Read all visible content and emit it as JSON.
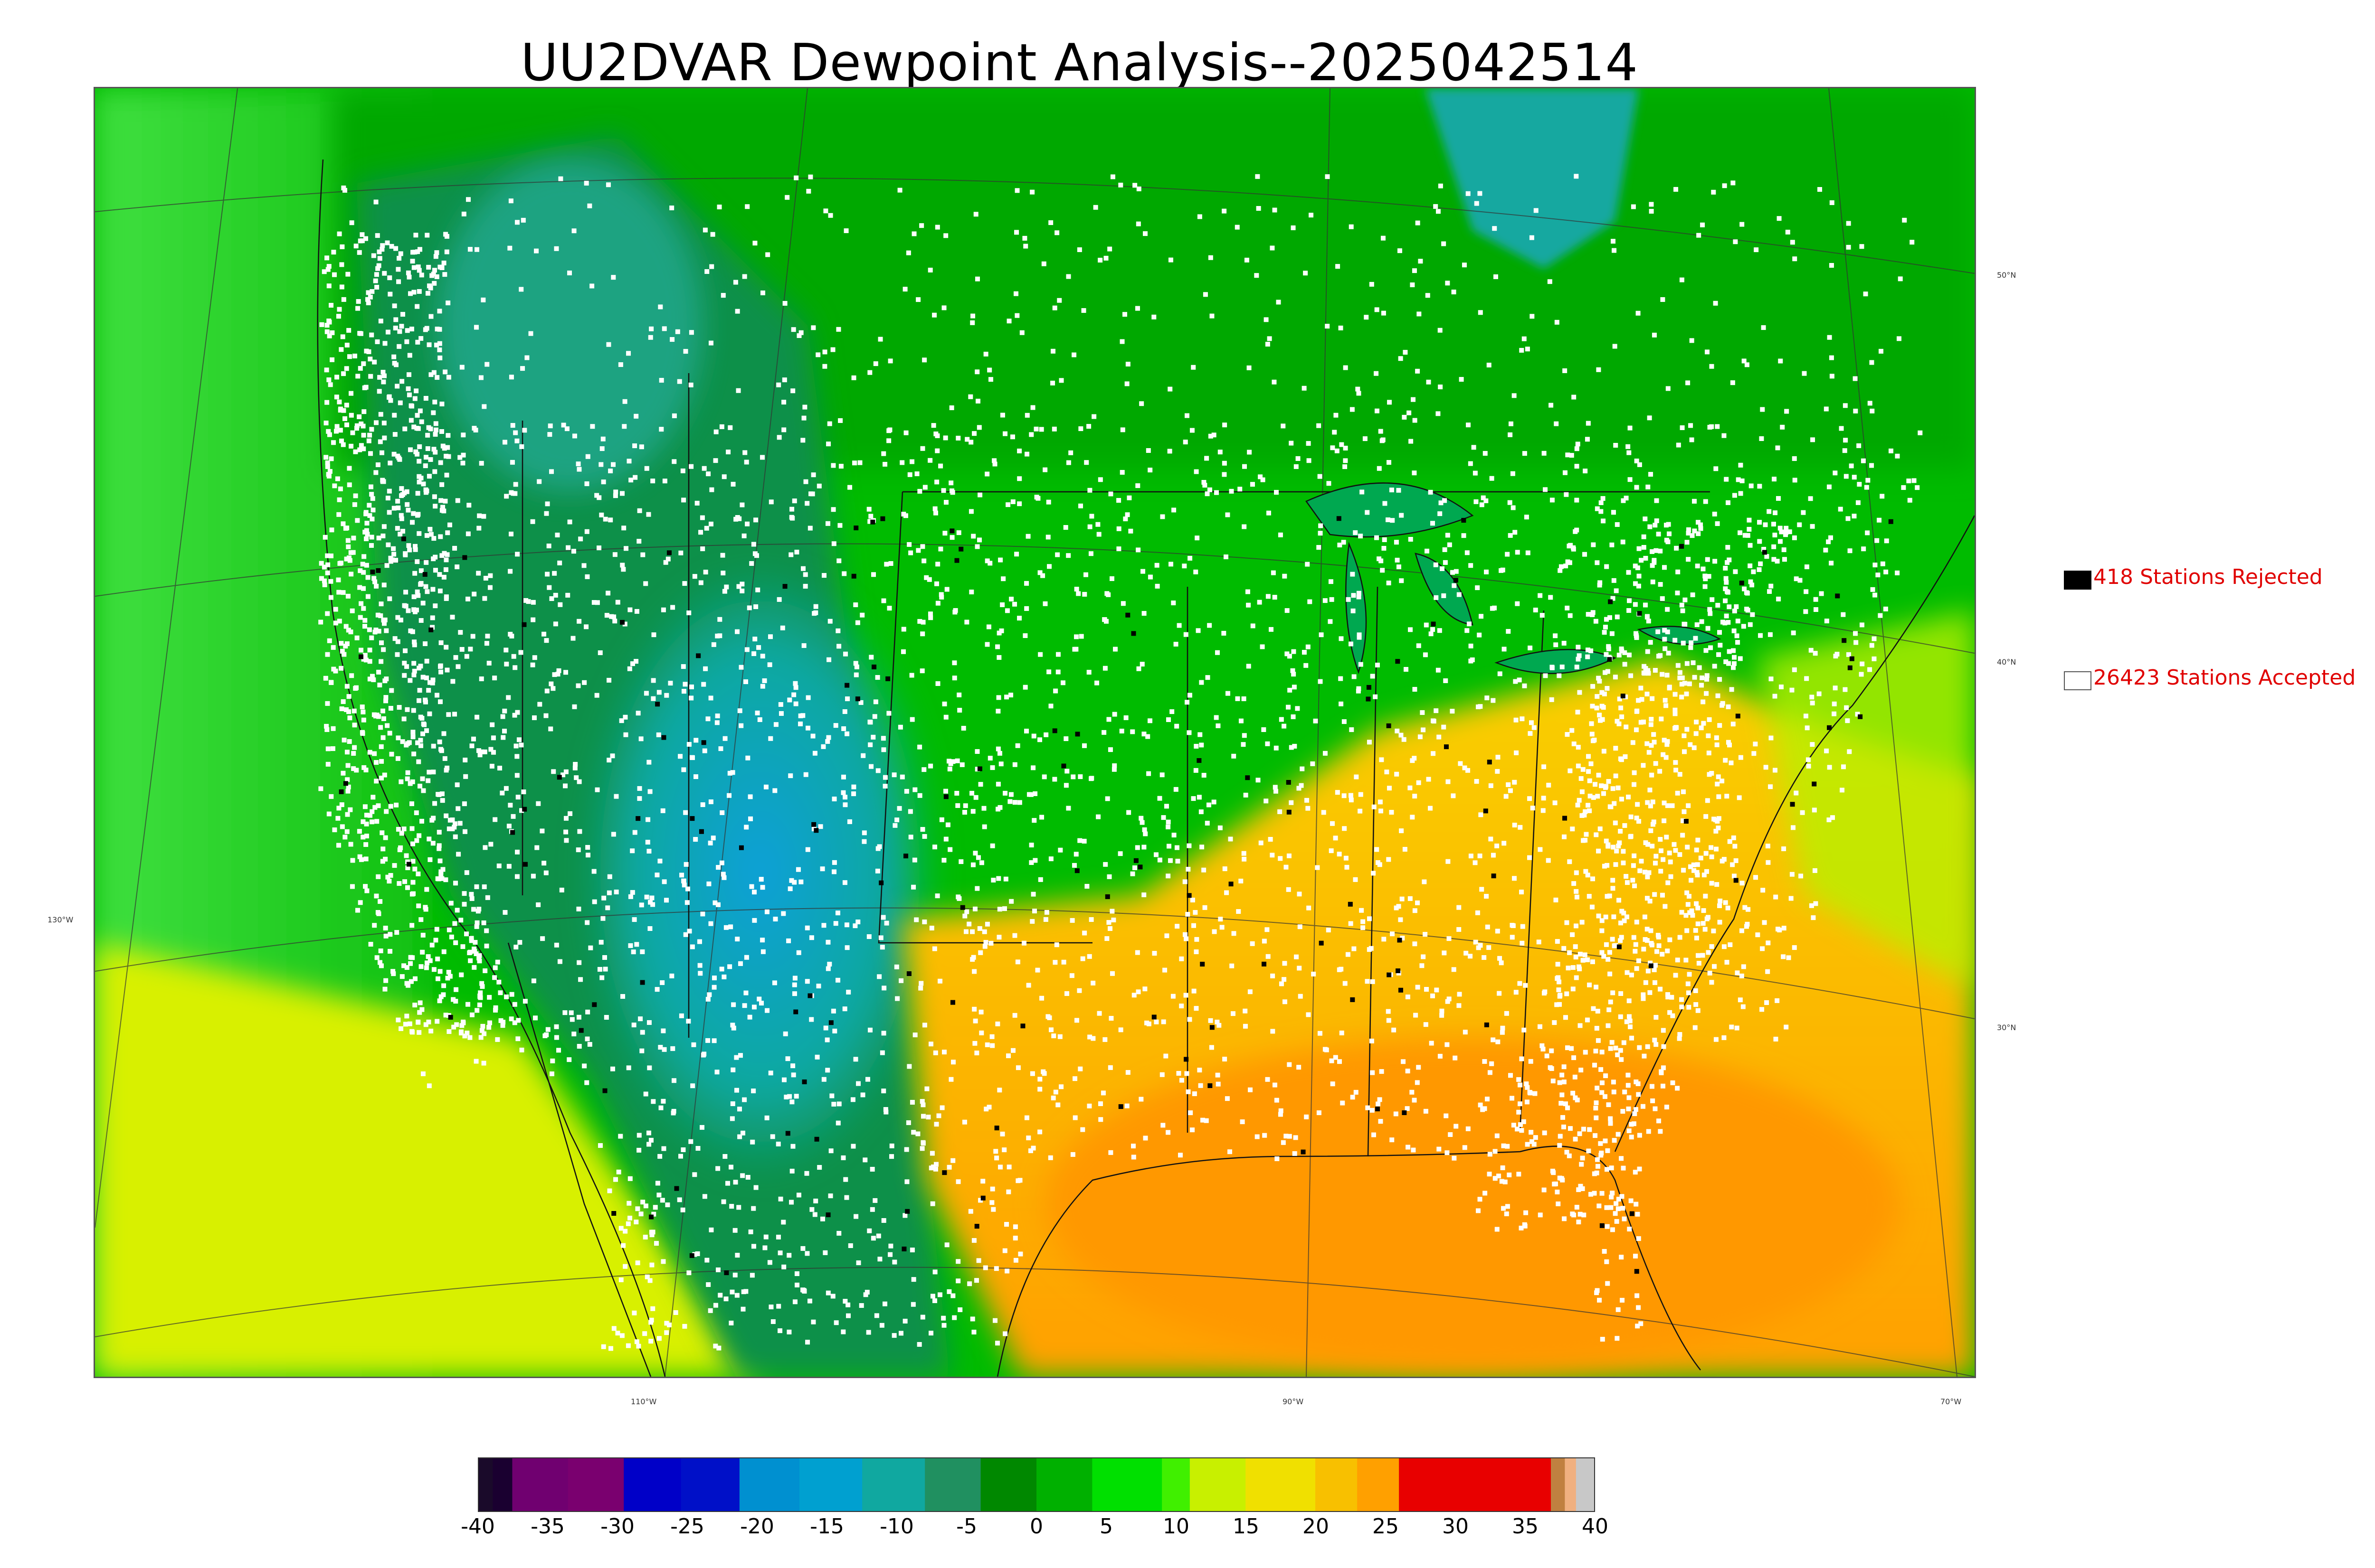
{
  "title": "UU2DVAR Dewpoint Analysis--2025042514",
  "legend": {
    "rejected": {
      "label": "418 Stations Rejected",
      "swatch_color": "#000000"
    },
    "accepted": {
      "label": "26423 Stations Accepted",
      "swatch_color": "#ffffff"
    }
  },
  "lat_labels": [
    "50°N",
    "40°N",
    "30°N"
  ],
  "lon_labels": [
    "130°W",
    "110°W",
    "90°W",
    "70°W"
  ],
  "colorbar": {
    "ticks": [
      "-40",
      "-35",
      "-30",
      "-25",
      "-20",
      "-15",
      "-10",
      "-5",
      "0",
      "5",
      "10",
      "15",
      "20",
      "25",
      "30",
      "35",
      "40"
    ],
    "range": [
      -40,
      40
    ],
    "bands": [
      {
        "from": -40,
        "to": -39,
        "color": "#1a0a2a"
      },
      {
        "from": -39,
        "to": -37.6,
        "color": "#1a0030"
      },
      {
        "from": -37.6,
        "to": -33.6,
        "color": "#700070"
      },
      {
        "from": -33.6,
        "to": -29.6,
        "color": "#7a006f"
      },
      {
        "from": -29.6,
        "to": -25.5,
        "color": "#0000c8"
      },
      {
        "from": -25.5,
        "to": -21.3,
        "color": "#0010c8"
      },
      {
        "from": -21.3,
        "to": -17,
        "color": "#0090d0"
      },
      {
        "from": -17,
        "to": -12.5,
        "color": "#00a0d0"
      },
      {
        "from": -12.5,
        "to": -8,
        "color": "#10a8a0"
      },
      {
        "from": -8,
        "to": -4,
        "color": "#209060"
      },
      {
        "from": -4,
        "to": 0,
        "color": "#008800"
      },
      {
        "from": 0,
        "to": 4,
        "color": "#00b000"
      },
      {
        "from": 4,
        "to": 9,
        "color": "#00e000"
      },
      {
        "from": 9,
        "to": 11,
        "color": "#40f000"
      },
      {
        "from": 11,
        "to": 15,
        "color": "#c8f000"
      },
      {
        "from": 15,
        "to": 20,
        "color": "#f0e000"
      },
      {
        "from": 20,
        "to": 23,
        "color": "#f8c000"
      },
      {
        "from": 23,
        "to": 26,
        "color": "#ffa000"
      },
      {
        "from": 26,
        "to": 36.9,
        "color": "#e80000"
      },
      {
        "from": 36.9,
        "to": 37.9,
        "color": "#c08040"
      },
      {
        "from": 37.9,
        "to": 38.7,
        "color": "#f0b080"
      },
      {
        "from": 38.7,
        "to": 40,
        "color": "#c8c8c8"
      }
    ]
  },
  "field_colors": {
    "ocean_west": "#20d020",
    "north": "#00b800",
    "mountain": "#108a50",
    "cold_core": "#10a8c8",
    "warm_south": "#f8c000",
    "hot_gulf": "#ffa000",
    "lake": "#00a850"
  }
}
